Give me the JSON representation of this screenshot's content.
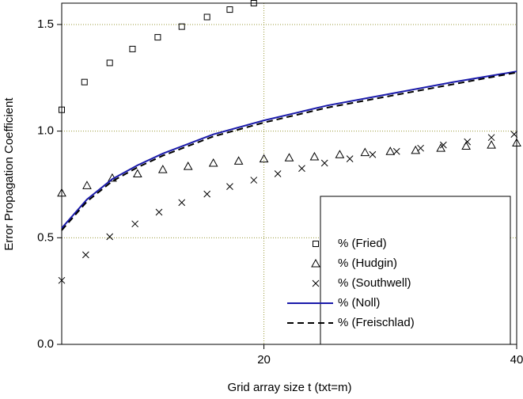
{
  "chart_data": {
    "type": "scatter",
    "x_label": "Grid array size t (txt=m)",
    "y_label": "Error Propagation Coefficient",
    "xlim": [
      4,
      40
    ],
    "ylim": [
      0,
      1.6
    ],
    "xticks": [
      20,
      40
    ],
    "yticks": [
      {
        "value": 0,
        "label": "0.0"
      },
      0.5,
      {
        "value": 1,
        "label": "1.0"
      },
      1.5
    ],
    "grid": true,
    "legend": "lower-right",
    "series": [
      {
        "name": "% (Fried)",
        "style": "square",
        "color": "#000000",
        "x": [
          4,
          5.8,
          7.8,
          9.6,
          11.6,
          13.5,
          15.5,
          17.3,
          19.2
        ],
        "values": [
          1.1,
          1.23,
          1.32,
          1.385,
          1.44,
          1.49,
          1.535,
          1.57,
          1.6
        ]
      },
      {
        "name": "% (Hudgin)",
        "style": "triangle",
        "color": "#000000",
        "x": [
          4,
          6,
          8,
          10,
          12,
          14,
          16,
          18,
          20,
          22,
          24,
          26,
          28,
          30,
          32,
          34,
          36,
          38,
          40
        ],
        "values": [
          0.71,
          0.745,
          0.78,
          0.8,
          0.82,
          0.835,
          0.85,
          0.86,
          0.87,
          0.875,
          0.88,
          0.89,
          0.9,
          0.905,
          0.91,
          0.92,
          0.93,
          0.935,
          0.945
        ]
      },
      {
        "name": "% (Southwell)",
        "style": "cross",
        "color": "#000000",
        "x": [
          4,
          5.9,
          7.8,
          9.8,
          11.7,
          13.5,
          15.5,
          17.3,
          19.2,
          21.1,
          23,
          24.8,
          26.8,
          28.6,
          30.5,
          32.4,
          34.2,
          36.1,
          38,
          39.8
        ],
        "values": [
          0.3,
          0.42,
          0.505,
          0.565,
          0.62,
          0.665,
          0.705,
          0.74,
          0.77,
          0.8,
          0.825,
          0.85,
          0.87,
          0.89,
          0.905,
          0.92,
          0.935,
          0.95,
          0.97,
          0.985
        ]
      },
      {
        "name": "% (Noll)",
        "style": "solid",
        "color": "#1a1aaa",
        "x": [
          4,
          6,
          8,
          10,
          12,
          14,
          16,
          20,
          25,
          30,
          35,
          40
        ],
        "values": [
          0.545,
          0.68,
          0.775,
          0.84,
          0.895,
          0.94,
          0.985,
          1.05,
          1.12,
          1.175,
          1.23,
          1.28
        ]
      },
      {
        "name": "% (Freischlad)",
        "style": "dashed",
        "color": "#000000",
        "x": [
          4,
          6,
          8,
          10,
          12,
          14,
          16,
          20,
          25,
          30,
          35,
          40
        ],
        "values": [
          0.535,
          0.67,
          0.765,
          0.83,
          0.885,
          0.93,
          0.975,
          1.04,
          1.11,
          1.165,
          1.22,
          1.275
        ]
      }
    ]
  }
}
